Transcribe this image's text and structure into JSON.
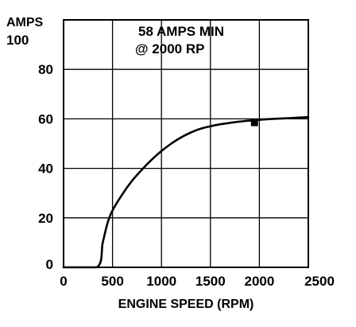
{
  "chart_data": {
    "type": "line",
    "title_lines": [
      "58 AMPS MIN",
      "@ 2000 RP"
    ],
    "ylabel": "AMPS",
    "xlabel": "ENGINE SPEED (RPM)",
    "xlim": [
      0,
      2500
    ],
    "ylim": [
      0,
      100
    ],
    "x_ticks": [
      0,
      500,
      1000,
      1500,
      2000,
      2500
    ],
    "x_tick_labels": [
      "0",
      "500",
      "1000",
      "1500",
      "2000",
      "2500"
    ],
    "y_ticks": [
      0,
      20,
      40,
      60,
      80,
      100
    ],
    "y_tick_labels": [
      "0",
      "20",
      "40",
      "60",
      "80",
      "100"
    ],
    "grid": true,
    "series": [
      {
        "x": [
          0,
          340,
          400,
          450,
          500,
          600,
          700,
          800,
          900,
          1000,
          1100,
          1200,
          1300,
          1400,
          1500,
          1600,
          1700,
          1800,
          1900,
          2000,
          2100,
          2200,
          2300,
          2400,
          2500
        ],
        "y": [
          0,
          0,
          10,
          18,
          23,
          29.5,
          35,
          39.5,
          43.5,
          47,
          50,
          52.5,
          54.5,
          56,
          57,
          57.8,
          58.4,
          58.9,
          59.3,
          59.6,
          59.9,
          60.1,
          60.3,
          60.5,
          60.7
        ]
      }
    ],
    "marker": {
      "x": 1950,
      "y": 58.5,
      "shape": "square"
    }
  }
}
